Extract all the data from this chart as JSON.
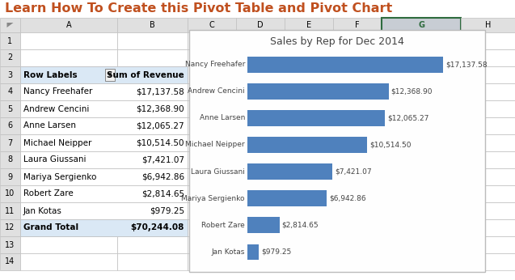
{
  "title": "Learn How To Create this Pivot Table and Pivot Chart",
  "title_color": "#C0501F",
  "chart_title": "Sales by Rep for Dec 2014",
  "names": [
    "Nancy Freehafer",
    "Andrew Cencini",
    "Anne Larsen",
    "Michael Neipper",
    "Laura Giussani",
    "Mariya Sergienko",
    "Robert Zare",
    "Jan Kotas"
  ],
  "values": [
    17137.58,
    12368.9,
    12065.27,
    10514.5,
    7421.07,
    6942.86,
    2814.65,
    979.25
  ],
  "labels": [
    "$17,137.58",
    "$12,368.90",
    "$12,065.27",
    "$10,514.50",
    "$7,421.07",
    "$6,942.86",
    "$2,814.65",
    "$979.25"
  ],
  "grand_total": "$70,244.08",
  "bar_color": "#4F81BD",
  "col_headers": [
    "A",
    "B",
    "C",
    "D",
    "E",
    "F",
    "G",
    "H"
  ],
  "header_bg": "#E0E0E0",
  "selected_col_bg": "#C8CDD4",
  "table_header_bg": "#DAE8F5",
  "bg_color": "#FFFFFF",
  "grid_color": "#C0C0C0",
  "title_fontsize": 11.5,
  "row_label_fontsize": 7.5,
  "chart_title_fontsize": 9,
  "bar_label_fontsize": 6.5
}
